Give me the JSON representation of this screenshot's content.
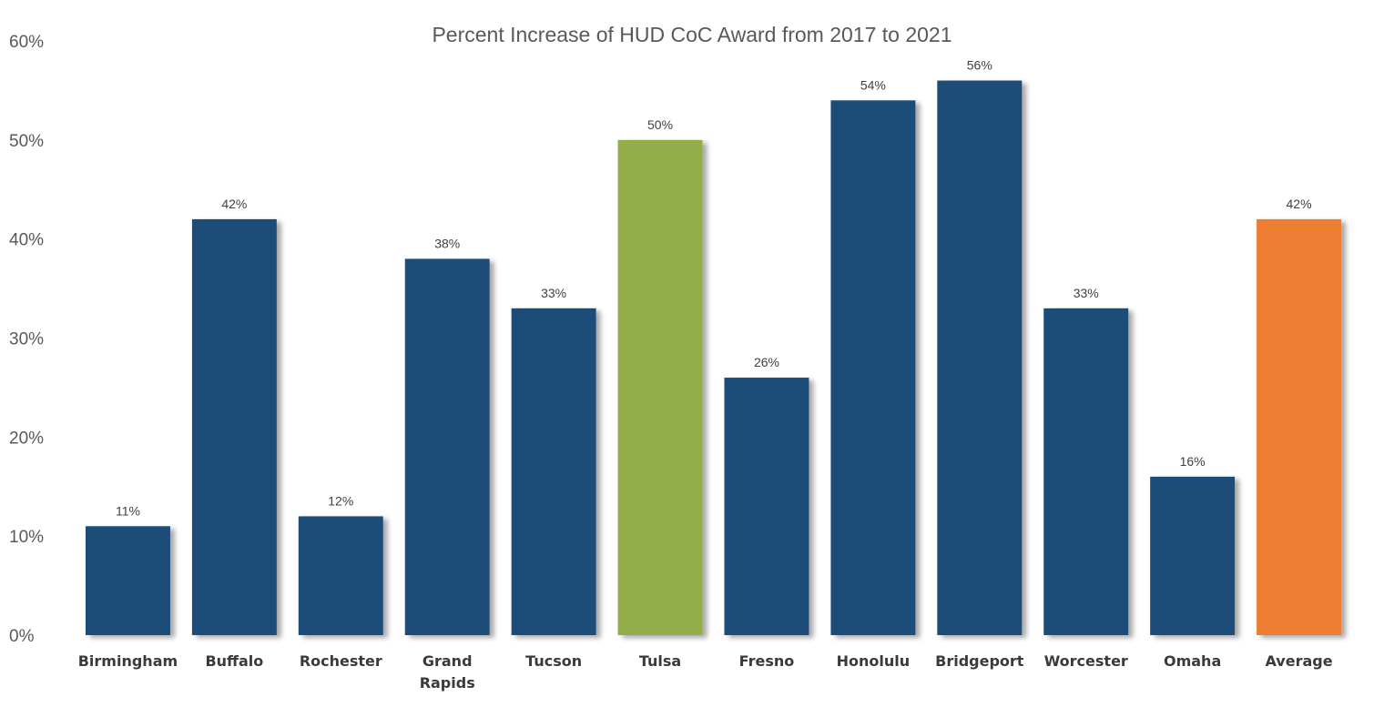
{
  "chart_data": {
    "type": "bar",
    "title": "Percent Increase of HUD CoC Award from 2017 to 2021",
    "categories": [
      [
        "Birmingham"
      ],
      [
        "Buffalo"
      ],
      [
        "Rochester"
      ],
      [
        "Grand",
        "Rapids"
      ],
      [
        "Tucson"
      ],
      [
        "Tulsa"
      ],
      [
        "Fresno"
      ],
      [
        "Honolulu"
      ],
      [
        "Bridgeport"
      ],
      [
        "Worcester"
      ],
      [
        "Omaha"
      ],
      [
        "Average"
      ]
    ],
    "values": [
      11,
      42,
      12,
      38,
      33,
      50,
      26,
      54,
      56,
      33,
      16,
      42
    ],
    "data_labels": [
      "11%",
      "42%",
      "12%",
      "38%",
      "33%",
      "50%",
      "26%",
      "54%",
      "56%",
      "33%",
      "16%",
      "42%"
    ],
    "bar_colors": [
      "#1f4e79",
      "#1f4e79",
      "#1f4e79",
      "#1f4e79",
      "#1f4e79",
      "#92ad48",
      "#1f4e79",
      "#1f4e79",
      "#1f4e79",
      "#1f4e79",
      "#1f4e79",
      "#ed7d31"
    ],
    "ylim": [
      0,
      60
    ],
    "yticks": [
      0,
      10,
      20,
      30,
      40,
      50,
      60
    ],
    "ytick_labels": [
      "0%",
      "10%",
      "20%",
      "30%",
      "40%",
      "50%",
      "60%"
    ],
    "grid": false,
    "legend": "none"
  }
}
